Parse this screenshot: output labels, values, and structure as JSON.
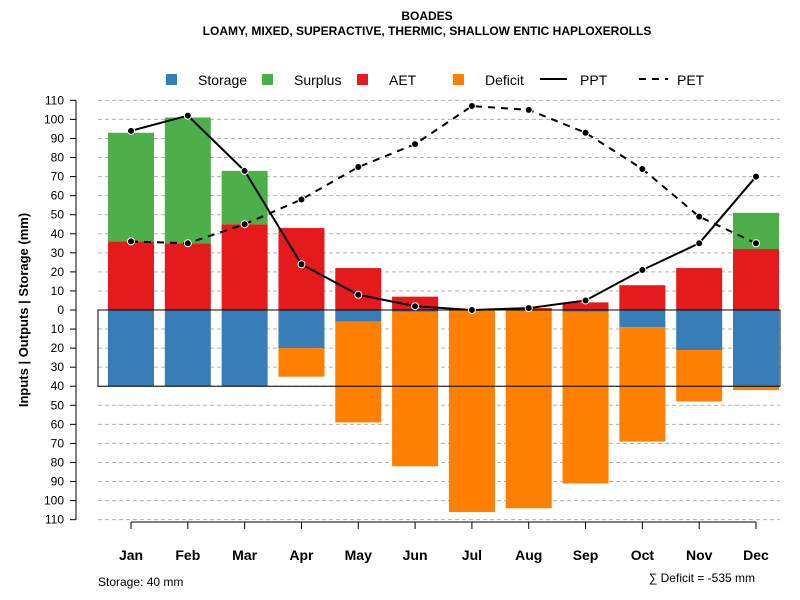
{
  "chart_data": {
    "type": "bar",
    "title": "BOADES",
    "subtitle": "LOAMY, MIXED, SUPERACTIVE, THERMIC, SHALLOW ENTIC HAPLOXEROLLS",
    "ylabel": "Inputs | Outputs | Storage     (mm)",
    "ylim": [
      -110,
      110
    ],
    "yticks": [
      110,
      100,
      90,
      80,
      70,
      60,
      50,
      40,
      30,
      20,
      10,
      0,
      -10,
      -20,
      -30,
      -40,
      -50,
      -60,
      -70,
      -80,
      -90,
      -100,
      -110
    ],
    "ytick_labels": [
      "110",
      "100",
      "90",
      "80",
      "70",
      "60",
      "50",
      "40",
      "30",
      "20",
      "10",
      "0",
      "10",
      "20",
      "30",
      "40",
      "50",
      "60",
      "70",
      "80",
      "90",
      "100",
      "110"
    ],
    "categories": [
      "Jan",
      "Feb",
      "Mar",
      "Apr",
      "May",
      "Jun",
      "Jul",
      "Aug",
      "Sep",
      "Oct",
      "Nov",
      "Dec"
    ],
    "legend": [
      "Storage",
      "Surplus",
      "AET",
      "Deficit",
      "PPT",
      "PET"
    ],
    "colors": {
      "Storage": "#377eb8",
      "Surplus": "#4daf4a",
      "AET": "#e41a1c",
      "Deficit": "#ff7f00",
      "line": "#000000",
      "grid": "#b0b0b0"
    },
    "series": [
      {
        "name": "AET",
        "values": [
          36,
          35,
          45,
          43,
          22,
          7,
          0,
          1,
          4,
          13,
          22,
          32
        ]
      },
      {
        "name": "Surplus",
        "values": [
          57,
          66,
          28,
          0,
          0,
          0,
          0,
          0,
          0,
          0,
          0,
          19
        ]
      },
      {
        "name": "Storage",
        "values": [
          40,
          40,
          40,
          20,
          6,
          1,
          0,
          0,
          1,
          9,
          21,
          40
        ]
      },
      {
        "name": "Deficit",
        "values": [
          0,
          0,
          0,
          15,
          53,
          81,
          106,
          104,
          90,
          60,
          27,
          2
        ]
      },
      {
        "name": "PPT",
        "values": [
          94,
          102,
          73,
          24,
          8,
          2,
          0,
          1,
          5,
          21,
          35,
          70
        ]
      },
      {
        "name": "PET",
        "values": [
          36,
          35,
          45,
          58,
          75,
          87,
          107,
          105,
          93,
          74,
          49,
          35
        ]
      }
    ],
    "storage_capacity": 40,
    "footnote_storage": "Storage: 40 mm",
    "footnote_deficit": "∑ Deficit = -535 mm"
  }
}
